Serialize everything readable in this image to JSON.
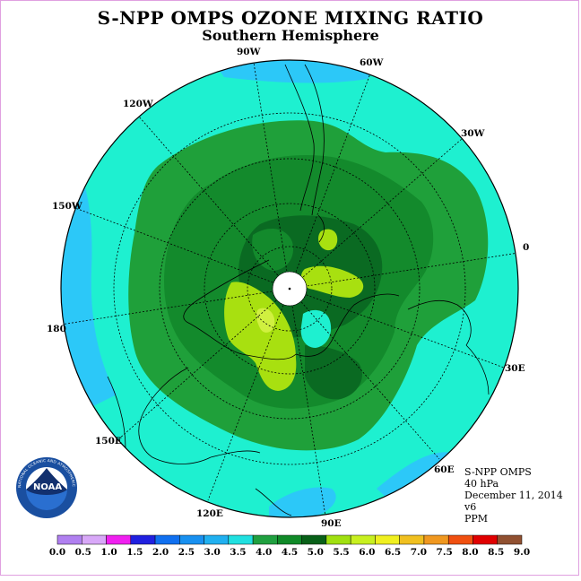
{
  "header": {
    "title": "S-NPP OMPS OZONE MIXING RATIO",
    "subtitle": "Southern Hemisphere"
  },
  "info": {
    "instrument": "S-NPP OMPS",
    "level": "40 hPa",
    "date": "December 11, 2014",
    "version": "v6",
    "units": "PPM"
  },
  "map": {
    "projection": "polar stereographic, south pole centered",
    "longitude_labels": [
      "90W",
      "60W",
      "30W",
      "0",
      "30E",
      "60E",
      "90E",
      "120E",
      "150E",
      "180",
      "150W",
      "120W"
    ],
    "fill_colors": {
      "3.0-3.5": "#2cc8f8",
      "3.5-4.0": "#1ef0d0",
      "4.0-4.5": "#1fa03a",
      "4.5-5.0": "#138a2c",
      "5.0-5.5": "#0a6a22",
      "5.5-6.0": "#a8e010",
      "6.0-6.5": "#d0f040",
      "missing": "#ffffff"
    }
  },
  "colorbar": {
    "tick_labels": [
      "0.0",
      "0.5",
      "1.0",
      "1.5",
      "2.0",
      "2.5",
      "3.0",
      "3.5",
      "4.0",
      "4.5",
      "5.0",
      "5.5",
      "6.0",
      "6.5",
      "7.0",
      "7.5",
      "8.0",
      "8.5",
      "9.0"
    ],
    "colors": [
      "#b080f0",
      "#d8a8f8",
      "#f020f0",
      "#2020e0",
      "#1070f0",
      "#1890f0",
      "#20b0f0",
      "#20e0e0",
      "#20a040",
      "#108a28",
      "#086018",
      "#a0e010",
      "#c8f020",
      "#f0f020",
      "#f0c020",
      "#f09820",
      "#f05010",
      "#e00000",
      "#905030"
    ]
  },
  "logo": {
    "name": "NOAA",
    "ring_text": "NATIONAL OCEANIC AND ATMOSPHERIC ADMINISTRATION · U.S. DEPARTMENT OF COMMERCE"
  }
}
